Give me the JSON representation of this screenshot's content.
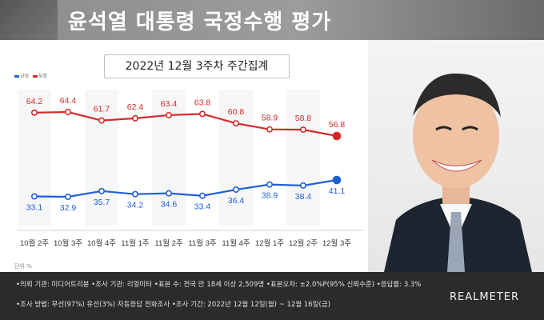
{
  "header": {
    "title": "윤석열 대통령 국정수행 평가"
  },
  "subtitle": "2022년 12월 3주차 주간집계",
  "legend": {
    "approve": "긍정",
    "disapprove": "부정"
  },
  "unit_label": "단위:%",
  "footer": {
    "line1": "•의뢰 기관: 미디어트리뷴 •조사 기관: 리얼미터 •표본 수: 전국 만 18세 이상 2,509명 •표본오차: ±2.0%P(95% 신뢰수준) •응답률: 3.3%",
    "line2": "•조사 방법: 무선(97%) 유선(3%) 자동응답 전화조사 •조사 기간: 2022년 12월 12일(월) ~ 12월 16일(금)"
  },
  "brand": "REALMETER",
  "colors": {
    "approve": "#1f5fd6",
    "disapprove": "#d42a2a",
    "header_bg": "#999999",
    "footer_bg": "#2b2b2b"
  },
  "chart_data": {
    "type": "line",
    "categories": [
      "10월 2주",
      "10월 3주",
      "10월 4주",
      "11월 1주",
      "11월 2주",
      "11월 3주",
      "11월 4주",
      "12월 1주",
      "12월 2주",
      "12월 3주"
    ],
    "series": [
      {
        "name": "부정",
        "color": "#d42a2a",
        "values": [
          64.2,
          64.4,
          61.7,
          62.4,
          63.4,
          63.8,
          60.8,
          58.9,
          58.8,
          56.8
        ]
      },
      {
        "name": "긍정",
        "color": "#1f5fd6",
        "values": [
          33.1,
          32.9,
          35.7,
          34.2,
          34.6,
          33.4,
          36.4,
          38.9,
          38.4,
          41.1
        ]
      }
    ],
    "title": "2022년 12월 3주차 주간집계",
    "ylabel": "단위:%",
    "grid": true
  }
}
